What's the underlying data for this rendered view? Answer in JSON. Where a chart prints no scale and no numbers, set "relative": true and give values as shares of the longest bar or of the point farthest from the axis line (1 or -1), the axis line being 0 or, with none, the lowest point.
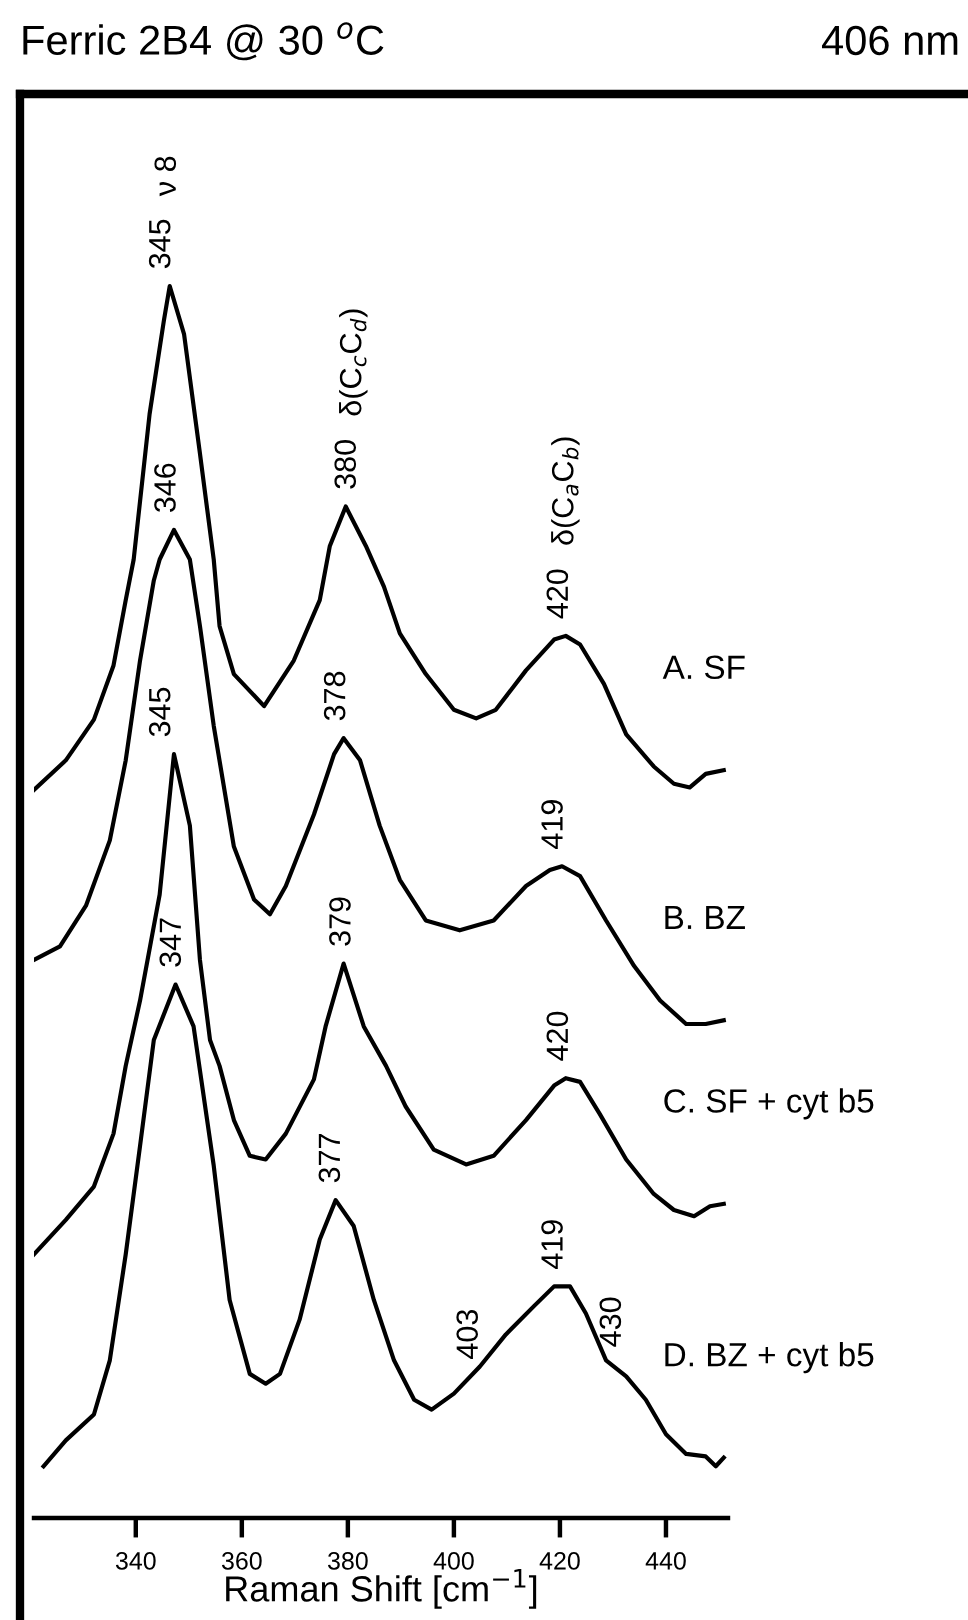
{
  "chart_data": {
    "type": "line",
    "title": "Ferric 2B4 @ 30 $^{o}$C",
    "subtitle": "406 nm",
    "xlabel": "Raman Shift [cm$^{−1}$]",
    "relative": true,
    "xlim": [
      320.8,
      451.7
    ],
    "xticks": [
      340,
      360,
      380,
      400,
      420,
      440
    ],
    "line_style": "solid",
    "grid": false,
    "legend": false,
    "series": [
      {
        "name": "A. SF",
        "color": "#000000",
        "x": [
          320.8,
          326.8,
          332.1,
          335.8,
          338.1,
          339.6,
          342.6,
          345.3,
          346.4,
          349.1,
          352.1,
          354.7,
          355.8,
          358.5,
          364.2,
          369.8,
          374.7,
          376.6,
          379.6,
          383.4,
          386.8,
          389.8,
          394.7,
          400.0,
          404.2,
          407.9,
          413.6,
          418.9,
          421.1,
          423.8,
          428.3,
          432.5,
          437.7,
          441.5,
          444.5,
          447.5,
          450.9
        ],
        "values": [
          0.591,
          0.615,
          0.648,
          0.692,
          0.745,
          0.778,
          0.896,
          0.972,
          1.0,
          0.961,
          0.864,
          0.778,
          0.724,
          0.685,
          0.659,
          0.696,
          0.745,
          0.789,
          0.821,
          0.789,
          0.756,
          0.718,
          0.685,
          0.656,
          0.649,
          0.656,
          0.688,
          0.713,
          0.716,
          0.709,
          0.677,
          0.636,
          0.61,
          0.596,
          0.593,
          0.604,
          0.607
        ]
      },
      {
        "name": "B. BZ",
        "color": "#000000",
        "x": [
          320.8,
          325.7,
          330.6,
          335.1,
          338.1,
          340.8,
          343.4,
          344.5,
          347.2,
          350.2,
          352.1,
          354.7,
          358.5,
          362.3,
          365.3,
          368.3,
          373.6,
          377.4,
          379.2,
          382.3,
          386.0,
          389.8,
          394.7,
          401.1,
          407.5,
          413.6,
          418.1,
          420.4,
          423.8,
          428.7,
          434.0,
          438.9,
          443.8,
          447.5,
          450.9
        ],
        "values": [
          0.453,
          0.464,
          0.497,
          0.55,
          0.615,
          0.696,
          0.761,
          0.778,
          0.802,
          0.778,
          0.724,
          0.643,
          0.545,
          0.502,
          0.49,
          0.513,
          0.571,
          0.62,
          0.633,
          0.615,
          0.562,
          0.518,
          0.485,
          0.477,
          0.485,
          0.513,
          0.526,
          0.529,
          0.521,
          0.485,
          0.448,
          0.42,
          0.401,
          0.401,
          0.404
        ]
      },
      {
        "name": "C. SF + cyt b5",
        "color": "#000000",
        "x": [
          320.8,
          326.8,
          332.1,
          335.8,
          338.1,
          340.8,
          344.5,
          347.2,
          350.2,
          352.1,
          354.0,
          355.8,
          358.5,
          361.5,
          364.5,
          368.3,
          373.6,
          375.8,
          379.2,
          383.0,
          387.2,
          390.9,
          396.2,
          402.3,
          407.5,
          413.6,
          418.9,
          421.1,
          423.8,
          427.5,
          432.5,
          437.7,
          441.5,
          445.3,
          448.3,
          450.9
        ],
        "values": [
          0.214,
          0.242,
          0.269,
          0.312,
          0.367,
          0.42,
          0.506,
          0.62,
          0.562,
          0.453,
          0.388,
          0.367,
          0.323,
          0.294,
          0.291,
          0.312,
          0.356,
          0.399,
          0.45,
          0.399,
          0.367,
          0.334,
          0.299,
          0.287,
          0.294,
          0.323,
          0.351,
          0.357,
          0.354,
          0.328,
          0.291,
          0.263,
          0.25,
          0.245,
          0.253,
          0.255
        ]
      },
      {
        "name": "D. BZ + cyt b5",
        "color": "#000000",
        "x": [
          322.6,
          326.8,
          332.1,
          335.1,
          338.1,
          340.8,
          343.4,
          347.5,
          350.9,
          354.7,
          357.7,
          361.5,
          364.5,
          367.2,
          370.9,
          374.7,
          377.7,
          381.1,
          384.9,
          388.7,
          392.5,
          395.8,
          400.0,
          404.9,
          409.8,
          415.1,
          418.9,
          421.9,
          424.9,
          428.7,
          432.5,
          436.2,
          440.0,
          443.8,
          447.5,
          449.4,
          450.9
        ],
        "values": [
          0.042,
          0.063,
          0.084,
          0.128,
          0.214,
          0.302,
          0.388,
          0.433,
          0.399,
          0.286,
          0.177,
          0.117,
          0.109,
          0.117,
          0.161,
          0.226,
          0.258,
          0.237,
          0.177,
          0.128,
          0.096,
          0.088,
          0.101,
          0.123,
          0.149,
          0.172,
          0.188,
          0.188,
          0.166,
          0.128,
          0.115,
          0.096,
          0.068,
          0.052,
          0.05,
          0.042,
          0.049
        ]
      }
    ],
    "annotations": [
      "ν 8",
      "δ(C$_{c}$C$_{d}$)",
      "δ(C$_{a}$C$_{b}$)",
      {
        "text": "345",
        "x": 345,
        "y": 1.0
      },
      {
        "text": "380",
        "x": 380,
        "y": 0.821
      },
      {
        "text": "420",
        "x": 420,
        "y": 0.716
      },
      {
        "text": "346",
        "x": 346,
        "y": 0.802
      },
      {
        "text": "378",
        "x": 378,
        "y": 0.633
      },
      {
        "text": "419",
        "x": 419,
        "y": 0.529
      },
      {
        "text": "345",
        "x": 345,
        "y": 0.62
      },
      {
        "text": "379",
        "x": 379,
        "y": 0.45
      },
      {
        "text": "420",
        "x": 420,
        "y": 0.357
      },
      {
        "text": "347",
        "x": 347,
        "y": 0.433
      },
      {
        "text": "377",
        "x": 377,
        "y": 0.258
      },
      {
        "text": "403",
        "x": 403,
        "y": 0.115
      },
      {
        "text": "419",
        "x": 419,
        "y": 0.188
      },
      {
        "text": "430",
        "x": 430,
        "y": 0.125
      }
    ]
  }
}
